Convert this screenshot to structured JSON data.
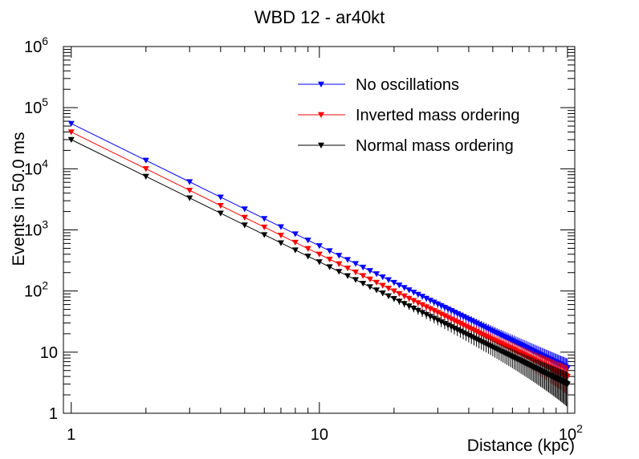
{
  "chart_data": {
    "type": "scatter",
    "title": "WBD 12 - ar40kt",
    "xlabel": "Distance (kpc)",
    "ylabel": "Events in 50.0 ms",
    "x_scale": "log",
    "y_scale": "log",
    "xlim": [
      0.93,
      107
    ],
    "ylim": [
      1,
      1000000
    ],
    "x_ticks": [
      {
        "value": 1,
        "label": "1"
      },
      {
        "value": 10,
        "label": "10"
      },
      {
        "value": 100,
        "label": "10",
        "exponent": "2"
      }
    ],
    "y_ticks": [
      {
        "value": 1,
        "label": "1"
      },
      {
        "value": 10,
        "label": "10"
      },
      {
        "value": 100,
        "label": "10",
        "exponent": "2"
      },
      {
        "value": 1000,
        "label": "10",
        "exponent": "3"
      },
      {
        "value": 10000,
        "label": "10",
        "exponent": "4"
      },
      {
        "value": 100000,
        "label": "10",
        "exponent": "5"
      },
      {
        "value": 1000000,
        "label": "10",
        "exponent": "6"
      }
    ],
    "legend_position": "top-right",
    "grid": false,
    "x": [
      1,
      2,
      3,
      4,
      5,
      6,
      7,
      8,
      9,
      10,
      11,
      12,
      13,
      14,
      15,
      16,
      17,
      18,
      19,
      20,
      21,
      22,
      23,
      24,
      25,
      26,
      27,
      28,
      29,
      30,
      31,
      32,
      33,
      34,
      35,
      36,
      37,
      38,
      39,
      40,
      41,
      42,
      43,
      44,
      45,
      46,
      47,
      48,
      49,
      50,
      51,
      52,
      53,
      54,
      55,
      56,
      57,
      58,
      59,
      60,
      61,
      62,
      63,
      64,
      65,
      66,
      67,
      68,
      69,
      70,
      71,
      72,
      73,
      74,
      75,
      76,
      77,
      78,
      79,
      80,
      81,
      82,
      83,
      84,
      85,
      86,
      87,
      88,
      89,
      90,
      91,
      92,
      93,
      94,
      95,
      96,
      97,
      98,
      99,
      100
    ],
    "series": [
      {
        "name": "No oscillations",
        "color": "#0000ff",
        "n0": 55000
      },
      {
        "name": "Inverted mass ordering",
        "color": "#ff0000",
        "n0": 40000
      },
      {
        "name": "Normal mass ordering",
        "color": "#000000",
        "n0": 30000
      }
    ],
    "value_rule": "events = n0 / distance^2",
    "error_bars": "poisson sqrt(events)"
  }
}
